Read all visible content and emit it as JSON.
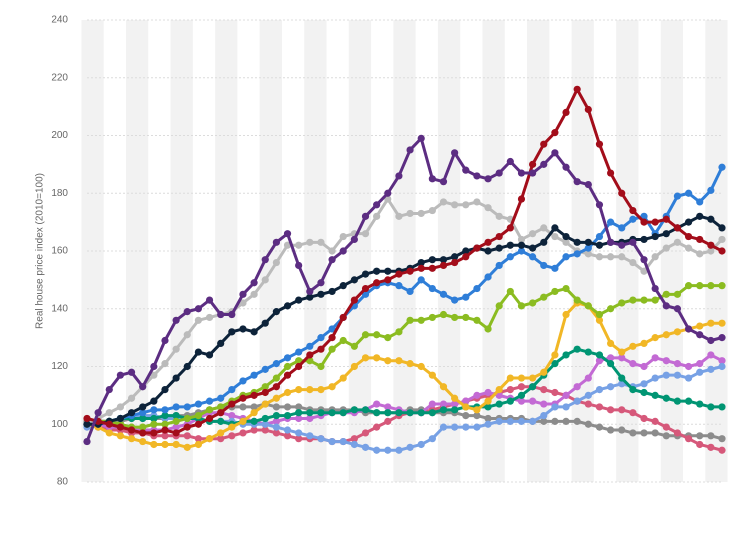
{
  "chart_data": {
    "type": "line",
    "y_label": "Real house price index (2010=100)",
    "categories": [
      null,
      null,
      null,
      null,
      null,
      null,
      null,
      null,
      null,
      null,
      null,
      null,
      null,
      null,
      null,
      null,
      null,
      null,
      null,
      null,
      null,
      null,
      null,
      null,
      null,
      null,
      null,
      null,
      null,
      null,
      null,
      null,
      null,
      null,
      null,
      null,
      null,
      null,
      null,
      null,
      null,
      null,
      null,
      null,
      null,
      null,
      null,
      null,
      null,
      null,
      null,
      null,
      null,
      null,
      null,
      null,
      null,
      null
    ],
    "ylim": [
      80,
      240
    ],
    "yticks": [
      80,
      100,
      120,
      140,
      160,
      180,
      200,
      220,
      240
    ],
    "grid": true,
    "series": [
      {
        "color": "#8c8c8c",
        "values": [
          101,
          101,
          101,
          101,
          102,
          102,
          102,
          102,
          103,
          103,
          104,
          105,
          106,
          106,
          106,
          106,
          107,
          106,
          106,
          106,
          105,
          105,
          105,
          105,
          105,
          104,
          104,
          104,
          104,
          105,
          105,
          104,
          104,
          104,
          103,
          103,
          102,
          102,
          102,
          102,
          101,
          101,
          101,
          101,
          101,
          100,
          99,
          98,
          98,
          97,
          97,
          97,
          96,
          96,
          96,
          96,
          96,
          95
        ]
      },
      {
        "color": "#d6587a",
        "values": [
          100,
          99,
          98,
          98,
          97,
          97,
          96,
          96,
          96,
          96,
          95,
          95,
          95,
          96,
          97,
          98,
          98,
          97,
          96,
          95,
          95,
          95,
          94,
          94,
          95,
          97,
          99,
          101,
          103,
          104,
          104,
          105,
          106,
          107,
          108,
          109,
          110,
          111,
          112,
          113,
          113,
          112,
          111,
          110,
          108,
          107,
          106,
          105,
          105,
          104,
          102,
          101,
          99,
          97,
          95,
          93,
          92,
          91
        ]
      },
      {
        "color": "#c36ad4",
        "values": [
          100,
          100,
          99,
          99,
          99,
          98,
          98,
          98,
          99,
          100,
          102,
          104,
          104,
          103,
          102,
          101,
          100,
          101,
          102,
          102,
          102,
          103,
          104,
          104,
          104,
          105,
          107,
          106,
          105,
          104,
          104,
          107,
          107,
          107,
          108,
          110,
          111,
          110,
          109,
          108,
          108,
          107,
          107,
          110,
          113,
          116,
          122,
          123,
          123,
          121,
          120,
          123,
          122,
          121,
          120,
          121,
          124,
          122
        ]
      },
      {
        "color": "#77a1e5",
        "values": [
          99,
          100,
          101,
          102,
          103,
          103,
          103,
          102,
          102,
          102,
          102,
          101,
          101,
          101,
          100,
          100,
          100,
          99,
          98,
          97,
          96,
          95,
          94,
          94,
          93,
          92,
          91,
          91,
          91,
          92,
          93,
          95,
          99,
          99,
          99,
          99,
          100,
          101,
          101,
          101,
          101,
          103,
          106,
          106,
          108,
          110,
          112,
          113,
          114,
          113,
          114,
          116,
          117,
          117,
          116,
          118,
          119,
          120
        ]
      },
      {
        "color": "#009573",
        "values": [
          100,
          101,
          101,
          102,
          102,
          102,
          102,
          103,
          103,
          102,
          102,
          101,
          101,
          100,
          101,
          101,
          102,
          103,
          103,
          104,
          104,
          104,
          104,
          104,
          105,
          105,
          104,
          104,
          104,
          104,
          104,
          104,
          105,
          105,
          106,
          106,
          106,
          107,
          108,
          110,
          113,
          117,
          121,
          124,
          126,
          125,
          124,
          121,
          116,
          112,
          111,
          110,
          109,
          108,
          108,
          107,
          106,
          106
        ]
      },
      {
        "color": "#f1b726",
        "values": [
          100,
          99,
          97,
          96,
          95,
          94,
          93,
          93,
          93,
          92,
          93,
          95,
          97,
          99,
          101,
          104,
          107,
          109,
          111,
          112,
          112,
          112,
          113,
          116,
          120,
          123,
          123,
          122,
          122,
          121,
          120,
          117,
          113,
          109,
          106,
          105,
          108,
          112,
          116,
          116,
          116,
          118,
          124,
          138,
          142,
          141,
          136,
          128,
          125,
          127,
          128,
          130,
          131,
          132,
          133,
          134,
          135,
          135
        ]
      },
      {
        "color": "#8bbc21",
        "values": [
          100,
          101,
          101,
          100,
          99,
          99,
          100,
          100,
          101,
          102,
          103,
          105,
          106,
          108,
          110,
          111,
          113,
          116,
          120,
          122,
          122,
          120,
          126,
          129,
          127,
          131,
          131,
          130,
          132,
          136,
          136,
          137,
          138,
          137,
          137,
          136,
          133,
          141,
          146,
          141,
          142,
          144,
          146,
          147,
          143,
          141,
          138,
          140,
          142,
          143,
          143,
          143,
          145,
          145,
          148,
          148,
          148,
          148
        ]
      },
      {
        "color": "#bbbbbb",
        "values": [
          100,
          102,
          104,
          106,
          109,
          113,
          117,
          121,
          126,
          131,
          136,
          137,
          138,
          139,
          142,
          145,
          150,
          156,
          162,
          162,
          163,
          163,
          160,
          165,
          166,
          166,
          172,
          178,
          172,
          173,
          173,
          174,
          177,
          176,
          176,
          177,
          175,
          172,
          171,
          164,
          166,
          168,
          165,
          163,
          160,
          159,
          158,
          158,
          158,
          156,
          153,
          158,
          161,
          163,
          161,
          159,
          160,
          164
        ]
      },
      {
        "color": "#2f7ed8",
        "values": [
          100,
          100,
          101,
          102,
          103,
          104,
          105,
          105,
          106,
          106,
          107,
          108,
          109,
          112,
          115,
          117,
          119,
          121,
          123,
          125,
          127,
          130,
          133,
          137,
          141,
          145,
          148,
          149,
          148,
          146,
          150,
          147,
          145,
          143,
          144,
          147,
          151,
          155,
          158,
          160,
          158,
          155,
          154,
          158,
          159,
          161,
          165,
          170,
          168,
          171,
          172,
          166,
          172,
          179,
          180,
          177,
          181,
          189
        ]
      },
      {
        "color": "#0d233a",
        "values": [
          100,
          100,
          101,
          102,
          104,
          106,
          108,
          112,
          116,
          120,
          125,
          124,
          128,
          132,
          133,
          132,
          135,
          139,
          141,
          143,
          144,
          145,
          146,
          148,
          150,
          152,
          153,
          153,
          153,
          154,
          156,
          157,
          157,
          158,
          160,
          161,
          160,
          161,
          162,
          162,
          161,
          163,
          168,
          165,
          163,
          163,
          162,
          163,
          163,
          164,
          164,
          165,
          166,
          168,
          170,
          172,
          171,
          168
        ]
      },
      {
        "color": "#a30d1a",
        "values": [
          102,
          101,
          100,
          99,
          98,
          97,
          97,
          98,
          97,
          99,
          100,
          102,
          104,
          107,
          109,
          110,
          111,
          113,
          117,
          120,
          124,
          126,
          130,
          137,
          143,
          147,
          149,
          150,
          152,
          153,
          154,
          154,
          155,
          156,
          158,
          161,
          163,
          165,
          168,
          178,
          190,
          197,
          201,
          208,
          216,
          209,
          197,
          187,
          180,
          174,
          170,
          170,
          171,
          168,
          165,
          164,
          162,
          160
        ]
      },
      {
        "color": "#5c2d82",
        "values": [
          94,
          104,
          112,
          117,
          118,
          113,
          120,
          129,
          136,
          139,
          140,
          143,
          138,
          138,
          145,
          149,
          157,
          163,
          166,
          155,
          146,
          149,
          157,
          160,
          164,
          172,
          176,
          180,
          186,
          195,
          199,
          185,
          184,
          194,
          188,
          186,
          185,
          187,
          191,
          187,
          187,
          190,
          194,
          189,
          184,
          183,
          176,
          163,
          162,
          163,
          157,
          147,
          141,
          140,
          133,
          131,
          129,
          130
        ]
      }
    ]
  }
}
